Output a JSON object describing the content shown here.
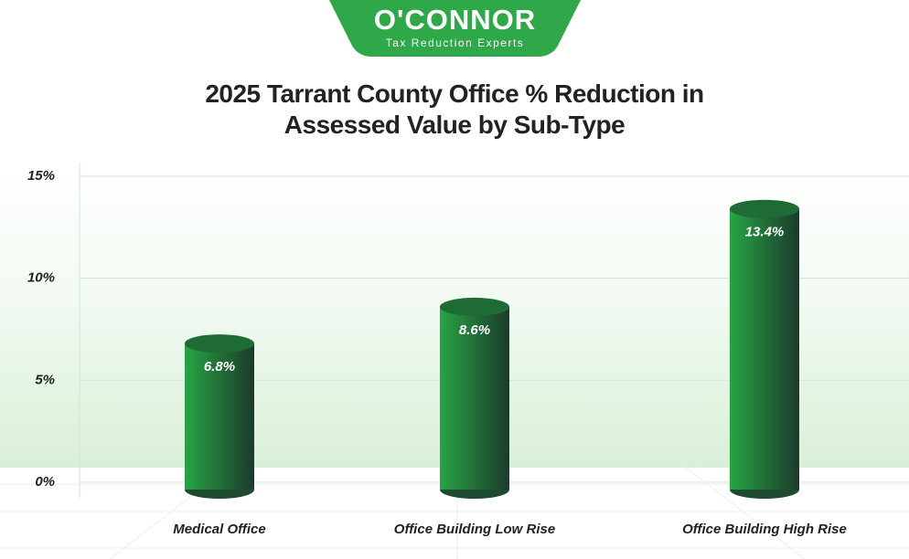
{
  "logo": {
    "name": "O'CONNOR",
    "tagline": "Tax Reduction Experts"
  },
  "chart_data": {
    "type": "bar",
    "title": "2025 Tarrant County Office % Reduction in Assessed Value by Sub-Type",
    "categories": [
      "Medical Office",
      "Office Building Low Rise",
      "Office Building High Rise"
    ],
    "values": [
      6.8,
      8.6,
      13.4
    ],
    "value_labels": [
      "6.8%",
      "8.6%",
      "13.4%"
    ],
    "color": "#27a444",
    "ylim": [
      0,
      15
    ],
    "yticks": [
      {
        "value": 0,
        "label": "0%"
      },
      {
        "value": 5,
        "label": "5%"
      },
      {
        "value": 10,
        "label": "10%"
      },
      {
        "value": 15,
        "label": "15%"
      }
    ],
    "grid": true
  }
}
